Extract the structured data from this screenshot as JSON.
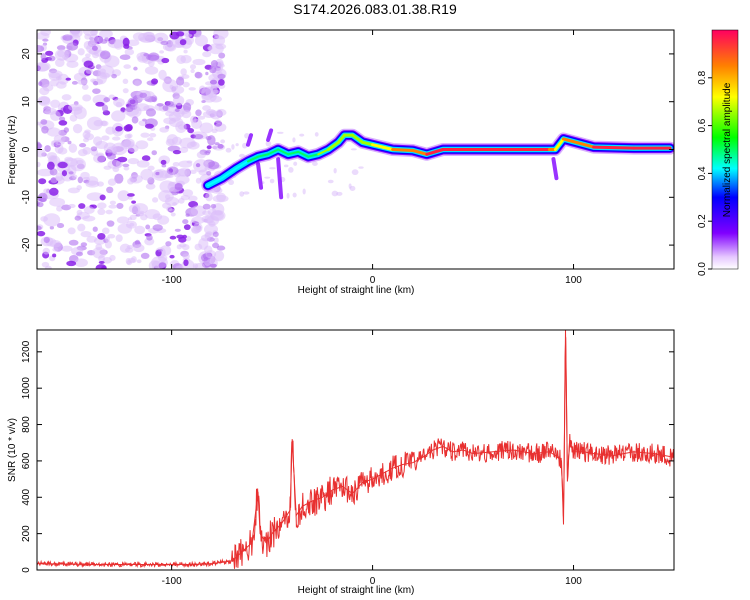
{
  "title": "S174.2026.083.01.38.R19",
  "colorbar": {
    "label": "Normalized spectral amplitude",
    "ticks": [
      "0.0",
      "0.2",
      "0.4",
      "0.6",
      "0.8"
    ]
  },
  "chart_data": [
    {
      "type": "heatmap",
      "title": "S174.2026.083.01.38.R19",
      "xlabel": "Height of straight line (km)",
      "ylabel": "Frequency (Hz)",
      "xlim": [
        -167,
        150
      ],
      "ylim": [
        -25,
        25
      ],
      "x_ticks": [
        -100,
        0,
        100
      ],
      "y_ticks": [
        -20,
        -10,
        0,
        10,
        20
      ],
      "x_tick_labels": [
        "-100",
        "0",
        "100"
      ],
      "y_tick_labels": [
        "-20",
        "-10",
        "0",
        "10",
        "20"
      ],
      "colorscale": [
        "#ffffff",
        "#d8b0ff",
        "#8000ff",
        "#0000ff",
        "#00ffff",
        "#00ff00",
        "#ffff00",
        "#ff8000",
        "#ff0040"
      ],
      "noise_region_x": [
        -167,
        -75
      ],
      "ridge": {
        "x": [
          -82,
          -75,
          -68,
          -62,
          -57,
          -52,
          -47,
          -42,
          -37,
          -32,
          -27,
          -22,
          -17,
          -14,
          -10,
          -5,
          0,
          5,
          10,
          20,
          27,
          35,
          50,
          70,
          88,
          91,
          95,
          110,
          130,
          148
        ],
        "y": [
          -7.5,
          -6,
          -4,
          -2.5,
          -1.5,
          -1,
          0,
          -1,
          -0.5,
          -1.5,
          -1,
          0,
          1.5,
          3,
          3,
          1.5,
          1,
          0.5,
          0,
          -0.2,
          -1,
          0,
          0,
          0,
          0,
          0,
          2.2,
          0.5,
          0.3,
          0.3
        ],
        "amplitude": [
          0.25,
          0.3,
          0.3,
          0.35,
          0.4,
          0.4,
          0.5,
          0.4,
          0.45,
          0.5,
          0.45,
          0.55,
          0.6,
          0.6,
          0.55,
          0.6,
          0.65,
          0.7,
          0.75,
          0.85,
          0.9,
          0.9,
          0.95,
          0.95,
          0.9,
          0.8,
          0.7,
          0.9,
          0.95,
          0.95
        ]
      }
    },
    {
      "type": "line",
      "xlabel": "Height of straight line (km)",
      "ylabel": "SNR (10 * v/v)",
      "xlim": [
        -167,
        150
      ],
      "ylim": [
        0,
        1320
      ],
      "x_ticks": [
        -100,
        0,
        100
      ],
      "y_ticks": [
        0,
        200,
        400,
        600,
        800,
        1000,
        1200
      ],
      "x_tick_labels": [
        "-100",
        "0",
        "100"
      ],
      "y_tick_labels": [
        "0",
        "200",
        "400",
        "600",
        "800",
        "1000",
        "1200"
      ],
      "series": [
        {
          "name": "SNR",
          "color": "#e83030",
          "x": [
            -167,
            -140,
            -110,
            -90,
            -80,
            -70,
            -65,
            -60,
            -57,
            -56,
            -53,
            -50,
            -45,
            -41,
            -40,
            -38,
            -35,
            -30,
            -25,
            -20,
            -15,
            -10,
            -5,
            0,
            5,
            10,
            15,
            20,
            25,
            30,
            35,
            40,
            45,
            50,
            60,
            70,
            80,
            88,
            91,
            94,
            95,
            96,
            97,
            98,
            100,
            105,
            110,
            120,
            130,
            140,
            150
          ],
          "y": [
            35,
            30,
            30,
            30,
            35,
            50,
            100,
            150,
            430,
            200,
            150,
            200,
            260,
            330,
            720,
            300,
            350,
            380,
            400,
            440,
            460,
            420,
            480,
            500,
            530,
            560,
            580,
            590,
            620,
            660,
            680,
            650,
            660,
            640,
            650,
            660,
            640,
            650,
            630,
            600,
            250,
            1320,
            500,
            700,
            650,
            650,
            640,
            630,
            650,
            640,
            620
          ]
        }
      ]
    }
  ]
}
